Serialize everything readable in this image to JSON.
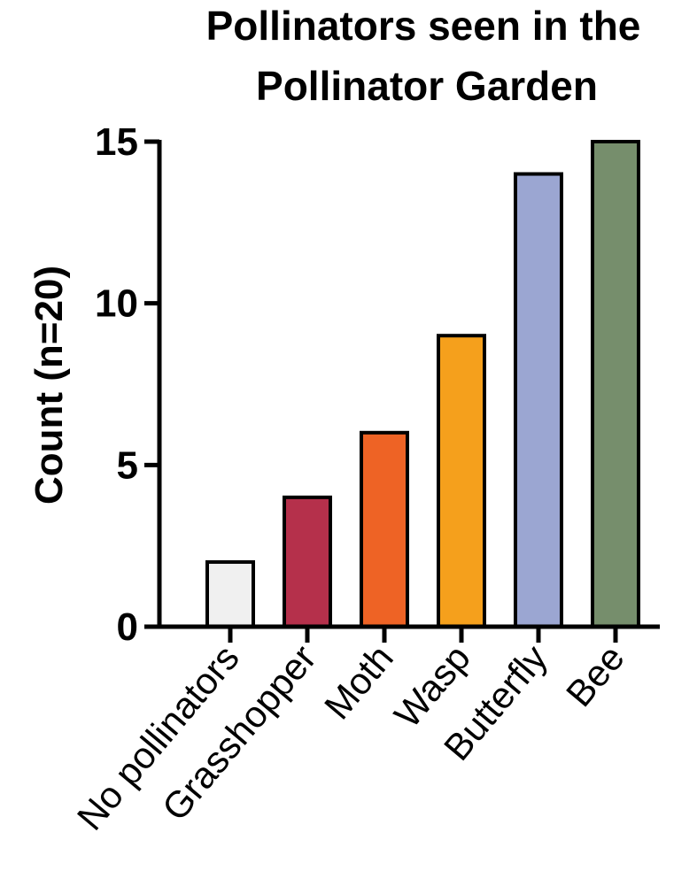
{
  "chart_data": {
    "type": "bar",
    "title_lines": [
      "Pollinators seen in the",
      "Pollinator Garden"
    ],
    "xlabel": "",
    "ylabel": "Count (n=20)",
    "categories": [
      "No pollinators",
      "Grasshopper",
      "Moth",
      "Wasp",
      "Butterfly",
      "Bee"
    ],
    "values": [
      2,
      4,
      6,
      9,
      14,
      15
    ],
    "colors": [
      "#f0f0f0",
      "#b5304b",
      "#ee6325",
      "#f5a01c",
      "#9ba6d2",
      "#768e6c"
    ],
    "ylim": [
      0,
      15
    ],
    "yticks": [
      0,
      5,
      10,
      15
    ],
    "ytick_labels": [
      "0",
      "5",
      "10",
      "15"
    ],
    "grid": false,
    "legend": "none"
  }
}
